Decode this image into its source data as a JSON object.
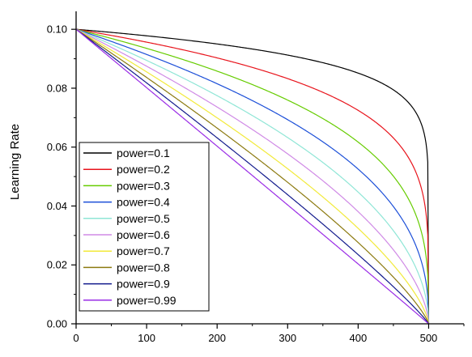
{
  "chart_data": {
    "type": "line",
    "title": "",
    "xlabel": "",
    "ylabel": "Learning Rate",
    "xlim": [
      0,
      550
    ],
    "ylim": [
      0,
      0.105
    ],
    "xticks": [
      0,
      100,
      200,
      300,
      400,
      500
    ],
    "xtick_labels": [
      "0",
      "100",
      "200",
      "300",
      "400",
      "500"
    ],
    "yticks": [
      0,
      0.02,
      0.04,
      0.06,
      0.08,
      0.1
    ],
    "ytick_labels": [
      "0.00",
      "0.02",
      "0.04",
      "0.06",
      "0.08",
      "0.10"
    ],
    "grid": false,
    "legend_position": "bottom-left",
    "formula": {
      "base_lr": 0.1,
      "max_iter": 500
    },
    "series": [
      {
        "name": "power=0.1",
        "power": 0.1,
        "color": "#000000"
      },
      {
        "name": "power=0.2",
        "power": 0.2,
        "color": "#e8141c"
      },
      {
        "name": "power=0.3",
        "power": 0.3,
        "color": "#66cc00"
      },
      {
        "name": "power=0.4",
        "power": 0.4,
        "color": "#1c4fd8"
      },
      {
        "name": "power=0.5",
        "power": 0.5,
        "color": "#8fe6d6"
      },
      {
        "name": "power=0.6",
        "power": 0.6,
        "color": "#d08ae6"
      },
      {
        "name": "power=0.7",
        "power": 0.7,
        "color": "#f2ea3a"
      },
      {
        "name": "power=0.8",
        "power": 0.8,
        "color": "#8c7a10"
      },
      {
        "name": "power=0.9",
        "power": 0.9,
        "color": "#121a8c"
      },
      {
        "name": "power=0.99",
        "power": 0.99,
        "color": "#9a2ce6"
      }
    ]
  }
}
